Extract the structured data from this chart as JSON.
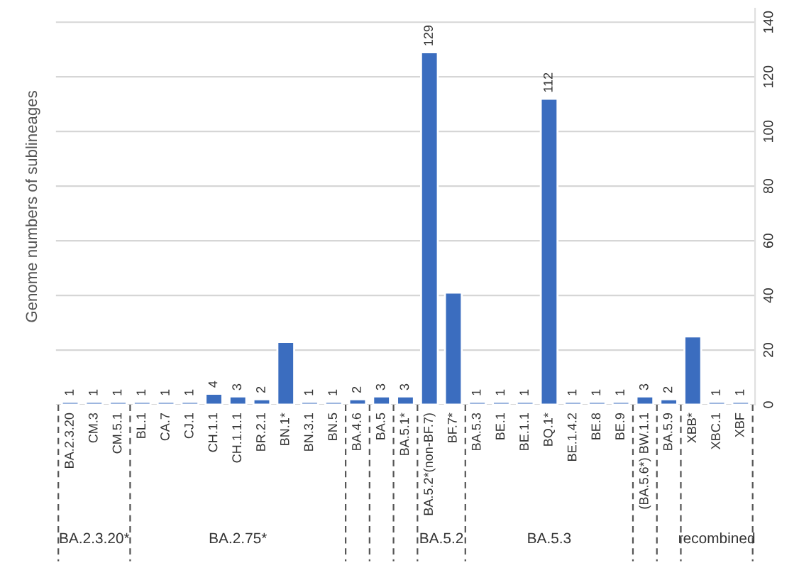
{
  "chart_data": {
    "type": "bar",
    "ylabel": "Genome numbers of sublineages",
    "categories": [
      "BA.2.3.20",
      "CM.3",
      "CM.5.1",
      "BL.1",
      "CA.7",
      "CJ.1",
      "CH.1.1",
      "CH.1.1.1",
      "BR.2.1",
      "BN.1*",
      "BN.3.1",
      "BN.5",
      "BA.4.6",
      "BA.5",
      "BA.5.1*",
      "BA.5.2*(non-BF.7)",
      "BF.7*",
      "BA.5.3",
      "BE.1",
      "BE.1.1",
      "BQ.1*",
      "BE.1.4.2",
      "BE.8",
      "BE.9",
      "(BA.5.6*) BW.1.1",
      "BA.5.9",
      "XBB*",
      "XBC.1",
      "XBF"
    ],
    "values": [
      1,
      1,
      1,
      1,
      1,
      1,
      4,
      3,
      2,
      23,
      1,
      1,
      2,
      3,
      3,
      129,
      41,
      1,
      1,
      1,
      112,
      1,
      1,
      1,
      3,
      2,
      25,
      1,
      1
    ],
    "value_labels": [
      "1",
      "1",
      "1",
      "1",
      "1",
      "1",
      "4",
      "3",
      "2",
      null,
      "1",
      "1",
      "2",
      "3",
      "3",
      "129",
      null,
      "1",
      "1",
      "1",
      "112",
      "1",
      "1",
      "1",
      "3",
      "2",
      null,
      "1",
      "1"
    ],
    "color": "#3b6dbf",
    "ylim": [
      0,
      145
    ],
    "yticks": [
      0,
      20,
      40,
      60,
      80,
      100,
      120,
      140
    ],
    "grid": "y",
    "annotations": [
      "BA.2.3.20*",
      "BA.2.75*",
      "BA.5.2",
      "BA.5.3",
      "recombined"
    ]
  }
}
